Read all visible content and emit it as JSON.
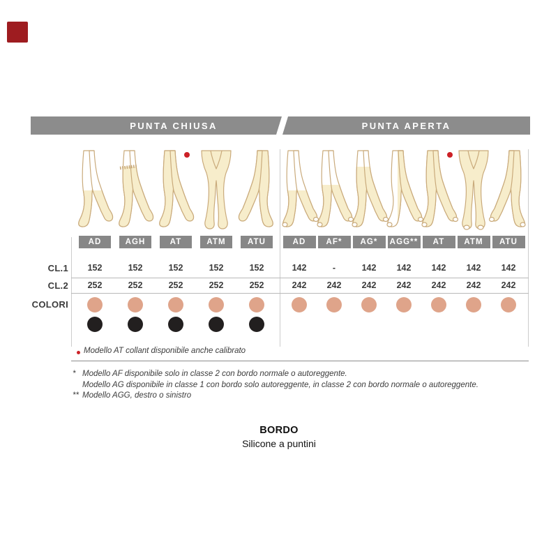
{
  "colors": {
    "page_bg": "#ffffff",
    "bar_gray": "#8c8c8c",
    "box_gray": "#878787",
    "text_dark": "#3b3b3b",
    "stocking_beige": "#f7edcb",
    "leg_outline": "#c9aa7b",
    "swatch_skin": "#dfa48a",
    "swatch_black": "#221f1f",
    "dot_red": "#cc2127",
    "logo_red": "#9e1c20",
    "line_light": "#cccccc",
    "line_mid": "#8d8d8d"
  },
  "sections": [
    {
      "title": "PUNTA CHIUSA",
      "toe": "closed",
      "models": [
        {
          "label": "AD",
          "figure": "knee",
          "cl1": "152",
          "cl2": "252",
          "swatches": [
            "skin",
            "black"
          ]
        },
        {
          "label": "AGH",
          "figure": "thigh-band",
          "cl1": "152",
          "cl2": "252",
          "swatches": [
            "skin",
            "black"
          ]
        },
        {
          "label": "AT",
          "figure": "full-dot",
          "cl1": "152",
          "cl2": "252",
          "swatches": [
            "skin",
            "black"
          ]
        },
        {
          "label": "ATM",
          "figure": "front",
          "cl1": "152",
          "cl2": "252",
          "swatches": [
            "skin",
            "black"
          ]
        },
        {
          "label": "ATU",
          "figure": "full-mirror",
          "cl1": "152",
          "cl2": "252",
          "swatches": [
            "skin",
            "black"
          ]
        }
      ]
    },
    {
      "title": "PUNTA APERTA",
      "toe": "open",
      "models": [
        {
          "label": "AD",
          "figure": "knee",
          "cl1": "142",
          "cl2": "242",
          "swatches": [
            "skin"
          ]
        },
        {
          "label": "AF*",
          "figure": "belowknee",
          "cl1": "-",
          "cl2": "242",
          "swatches": [
            "skin"
          ]
        },
        {
          "label": "AG*",
          "figure": "thigh",
          "cl1": "142",
          "cl2": "242",
          "swatches": [
            "skin"
          ]
        },
        {
          "label": "AGG**",
          "figure": "single",
          "cl1": "142",
          "cl2": "242",
          "swatches": [
            "skin"
          ]
        },
        {
          "label": "AT",
          "figure": "full-dot",
          "cl1": "142",
          "cl2": "242",
          "swatches": [
            "skin"
          ]
        },
        {
          "label": "ATM",
          "figure": "front",
          "cl1": "142",
          "cl2": "242",
          "swatches": [
            "skin"
          ]
        },
        {
          "label": "ATU",
          "figure": "full-mirror",
          "cl1": "142",
          "cl2": "242",
          "swatches": [
            "skin"
          ]
        }
      ]
    }
  ],
  "row_labels": {
    "cl1": "CL.1",
    "cl2": "CL.2",
    "colori": "COLORI"
  },
  "legend_note": {
    "text": "Modello AT collant disponibile anche calibrato"
  },
  "footnotes": [
    {
      "marker": "*",
      "text": "Modello AF disponibile solo in classe 2 con bordo normale o autoreggente."
    },
    {
      "marker": "",
      "text": "Modello AG disponibile in classe 1 con bordo solo autoreggente, in classe 2 con bordo normale o autoreggente."
    },
    {
      "marker": "**",
      "text": "Modello AGG, destro o sinistro"
    }
  ],
  "bordo": {
    "title": "BORDO",
    "subtitle": "Silicone a puntini"
  }
}
